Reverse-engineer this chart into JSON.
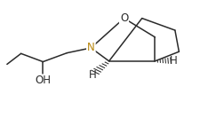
{
  "background_color": "#ffffff",
  "bond_color": "#2a2a2a",
  "atom_colors": {
    "O": "#2a2a2a",
    "N": "#b8860b",
    "H": "#2a2a2a",
    "OH": "#2a2a2a"
  },
  "figsize": [
    2.25,
    1.42
  ],
  "dpi": 100,
  "xlim": [
    0,
    1
  ],
  "ylim": [
    0,
    1
  ]
}
